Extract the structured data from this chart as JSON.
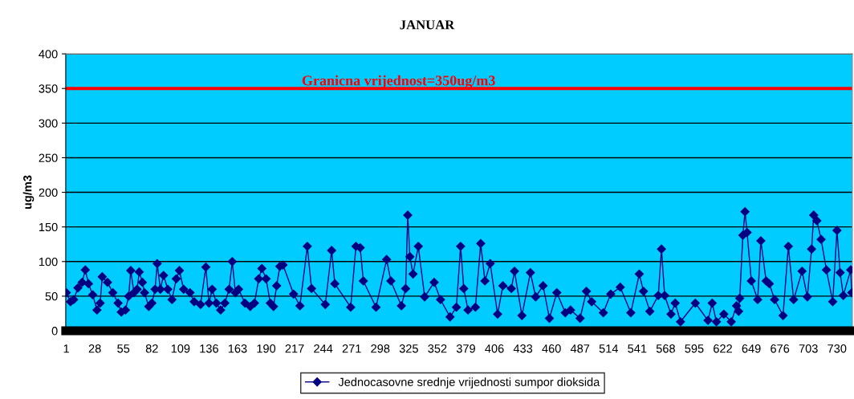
{
  "chart_data": {
    "type": "line",
    "title": "JANUAR",
    "ylabel": "ug/m3",
    "x": [
      1,
      5,
      8,
      12,
      16,
      19,
      22,
      26,
      30,
      33,
      35,
      40,
      45,
      50,
      53,
      57,
      60,
      62,
      65,
      68,
      70,
      73,
      75,
      79,
      82,
      85,
      87,
      90,
      93,
      97,
      101,
      105,
      108,
      112,
      118,
      122,
      128,
      133,
      136,
      139,
      143,
      147,
      151,
      155,
      158,
      161,
      164,
      170,
      175,
      179,
      183,
      186,
      190,
      194,
      197,
      200,
      203,
      206,
      216,
      222,
      229,
      233,
      246,
      252,
      255,
      270,
      275,
      279,
      282,
      294,
      304,
      308,
      318,
      322,
      324,
      326,
      329,
      334,
      340,
      349,
      355,
      364,
      370,
      374,
      377,
      381,
      388,
      393,
      397,
      402,
      409,
      414,
      422,
      425,
      432,
      440,
      445,
      452,
      458,
      465,
      473,
      478,
      487,
      493,
      498,
      509,
      516,
      525,
      535,
      543,
      547,
      553,
      561,
      564,
      567,
      573,
      577,
      582,
      596,
      608,
      612,
      616,
      623,
      630,
      635,
      637,
      638,
      641,
      643,
      645,
      649,
      655,
      658,
      663,
      666,
      671,
      679,
      684,
      689,
      697,
      702,
      706,
      708,
      711,
      715,
      720,
      726,
      730,
      733,
      736,
      743,
      744
    ],
    "series": [
      {
        "name": "Jednocasovne srednje vrijednosti sumpor dioksida",
        "color": "#000080",
        "values": [
          55,
          42,
          45,
          62,
          70,
          88,
          68,
          52,
          30,
          40,
          78,
          70,
          55,
          40,
          27,
          30,
          50,
          87,
          55,
          60,
          85,
          70,
          55,
          35,
          40,
          60,
          97,
          60,
          80,
          60,
          45,
          75,
          87,
          60,
          55,
          42,
          38,
          92,
          40,
          60,
          40,
          30,
          40,
          60,
          100,
          55,
          60,
          40,
          35,
          40,
          75,
          90,
          75,
          40,
          35,
          65,
          93,
          95,
          53,
          36,
          122,
          61,
          38,
          116,
          68,
          34,
          122,
          120,
          72,
          34,
          103,
          72,
          36,
          61,
          167,
          107,
          82,
          122,
          49,
          70,
          45,
          20,
          34,
          122,
          61,
          30,
          34,
          126,
          72,
          97,
          24,
          65,
          61,
          86,
          22,
          84,
          49,
          65,
          18,
          55,
          26,
          30,
          18,
          57,
          42,
          26,
          53,
          63,
          26,
          82,
          57,
          28,
          51,
          118,
          51,
          24,
          40,
          13,
          40,
          15,
          40,
          13,
          24,
          13,
          36,
          28,
          47,
          138,
          172,
          142,
          72,
          45,
          130,
          72,
          68,
          45,
          22,
          122,
          45,
          86,
          49,
          118,
          167,
          159,
          132,
          88,
          42,
          145,
          84,
          51,
          88,
          55
        ]
      }
    ],
    "xlim": [
      0.5,
      744.5
    ],
    "xticks": [
      1,
      28,
      55,
      82,
      109,
      136,
      163,
      190,
      217,
      244,
      271,
      298,
      325,
      352,
      379,
      406,
      433,
      460,
      487,
      514,
      541,
      568,
      595,
      622,
      649,
      676,
      703,
      730
    ],
    "ylim": [
      0,
      400
    ],
    "yticks": [
      0,
      50,
      100,
      150,
      200,
      250,
      300,
      350,
      400
    ],
    "ref_lines": [
      {
        "axis": "y",
        "value": 350,
        "label": "Granicna vrijednost=350ug/m3",
        "color": "#ff0000"
      }
    ],
    "grid": "y",
    "legend": "bottom",
    "marker": "diamond",
    "line_style": "solid"
  }
}
